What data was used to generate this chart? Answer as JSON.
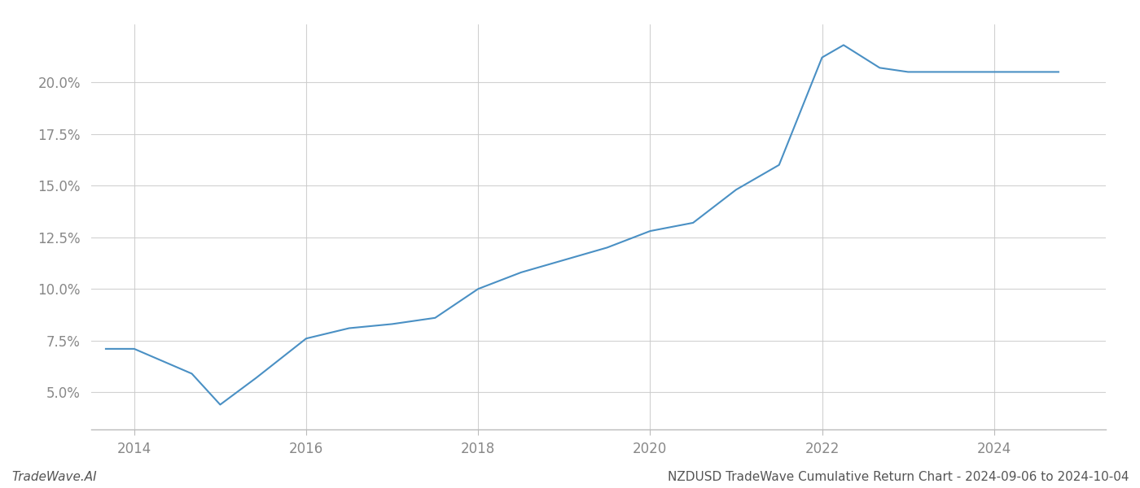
{
  "x_years": [
    2013.67,
    2014.0,
    2014.67,
    2015.0,
    2015.42,
    2016.0,
    2016.5,
    2017.0,
    2017.5,
    2018.0,
    2018.5,
    2019.0,
    2019.5,
    2020.0,
    2020.5,
    2021.0,
    2021.5,
    2022.0,
    2022.25,
    2022.67,
    2023.0,
    2023.5,
    2024.0,
    2024.5,
    2024.75
  ],
  "y_values": [
    0.071,
    0.071,
    0.059,
    0.044,
    0.057,
    0.076,
    0.081,
    0.083,
    0.086,
    0.1,
    0.108,
    0.114,
    0.12,
    0.128,
    0.132,
    0.148,
    0.16,
    0.212,
    0.218,
    0.207,
    0.205,
    0.205,
    0.205,
    0.205,
    0.205
  ],
  "line_color": "#4a90c4",
  "line_width": 1.5,
  "title": "NZDUSD TradeWave Cumulative Return Chart - 2024-09-06 to 2024-10-04",
  "watermark": "TradeWave.AI",
  "xlim": [
    2013.5,
    2025.3
  ],
  "ylim": [
    0.032,
    0.228
  ],
  "yticks": [
    0.05,
    0.075,
    0.1,
    0.125,
    0.15,
    0.175,
    0.2
  ],
  "ytick_labels": [
    "5.0%",
    "7.5%",
    "10.0%",
    "12.5%",
    "15.0%",
    "17.5%",
    "20.0%"
  ],
  "xticks": [
    2014,
    2016,
    2018,
    2020,
    2022,
    2024
  ],
  "xtick_labels": [
    "2014",
    "2016",
    "2018",
    "2020",
    "2022",
    "2024"
  ],
  "grid_color": "#cccccc",
  "bg_color": "#ffffff",
  "title_fontsize": 11,
  "watermark_fontsize": 11,
  "tick_fontsize": 12
}
